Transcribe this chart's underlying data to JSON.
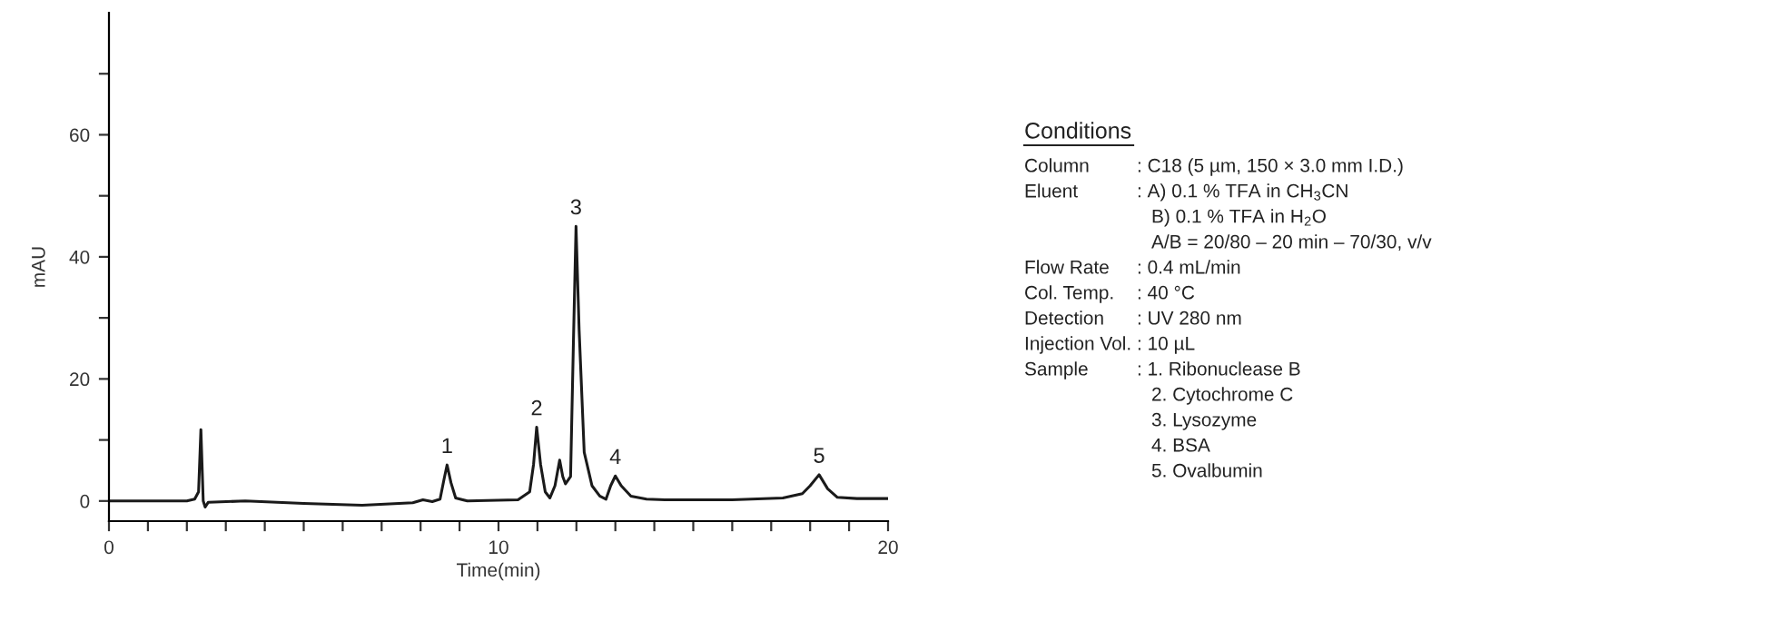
{
  "chart_data": {
    "type": "line",
    "xlabel": "Time(min)",
    "ylabel": "mAU",
    "xlim": [
      0,
      20
    ],
    "ylim": [
      -3.3,
      80
    ],
    "xticks": [
      0,
      {
        "value": 1,
        "label": null
      },
      {
        "value": 2,
        "label": null
      },
      {
        "value": 3,
        "label": null
      },
      {
        "value": 4,
        "label": null
      },
      {
        "value": 5,
        "label": null
      },
      {
        "value": 6,
        "label": null
      },
      {
        "value": 7,
        "label": null
      },
      {
        "value": 8,
        "label": null
      },
      {
        "value": 9,
        "label": null
      },
      10,
      {
        "value": 11,
        "label": null
      },
      {
        "value": 12,
        "label": null
      },
      {
        "value": 13,
        "label": null
      },
      {
        "value": 14,
        "label": null
      },
      {
        "value": 15,
        "label": null
      },
      {
        "value": 16,
        "label": null
      },
      {
        "value": 17,
        "label": null
      },
      {
        "value": 18,
        "label": null
      },
      {
        "value": 19,
        "label": null
      },
      20
    ],
    "yticks": [
      0,
      {
        "value": 10,
        "label": null
      },
      20,
      {
        "value": 30,
        "label": null
      },
      40,
      {
        "value": 50,
        "label": null
      },
      60,
      {
        "value": 70,
        "label": null
      }
    ],
    "grid": false,
    "legend": false,
    "series": [
      {
        "color": "#1a1a1a",
        "x": [
          0,
          2.0,
          2.2,
          2.3,
          2.36,
          2.42,
          2.47,
          2.55,
          3.5,
          5,
          6.5,
          7.8,
          8.06,
          8.3,
          8.5,
          8.6,
          8.68,
          8.78,
          8.9,
          9.2,
          10.5,
          10.8,
          10.9,
          10.98,
          11.08,
          11.2,
          11.32,
          11.45,
          11.57,
          11.65,
          11.72,
          11.85,
          11.92,
          11.99,
          12.07,
          12.2,
          12.4,
          12.6,
          12.76,
          12.88,
          13.0,
          13.15,
          13.4,
          13.8,
          14.27,
          16,
          17.3,
          17.8,
          18.0,
          18.23,
          18.45,
          18.7,
          19.2,
          20
        ],
        "values": [
          0,
          0,
          0.3,
          1.5,
          11.7,
          0,
          -1.0,
          -0.2,
          0,
          -0.4,
          -0.7,
          -0.3,
          0.2,
          -0.1,
          0.3,
          3.5,
          5.9,
          3,
          0.5,
          0,
          0.2,
          1.5,
          6,
          12.1,
          6,
          1.5,
          0.5,
          2.5,
          6.7,
          4,
          2.8,
          4,
          25,
          45.0,
          28,
          8,
          2.5,
          0.8,
          0.3,
          2.5,
          4.1,
          2.5,
          0.8,
          0.3,
          0.2,
          0.2,
          0.5,
          1.2,
          2.5,
          4.3,
          2,
          0.6,
          0.4,
          0.4
        ]
      }
    ],
    "annotations": [
      {
        "text": "1",
        "x": 8.68,
        "y": 5.9
      },
      {
        "text": "2",
        "x": 10.98,
        "y": 12.1
      },
      {
        "text": "3",
        "x": 11.99,
        "y": 45.0
      },
      {
        "text": "4",
        "x": 13.0,
        "y": 4.1
      },
      {
        "text": "5",
        "x": 18.23,
        "y": 4.3
      },
      "Conditions",
      "Column\t: C18 (5 µm, 150 × 3.0 mm I.D.)",
      "Eluent\t: A) 0.1 % TFA in CH$_{3}$CN",
      "\tB) 0.1 % TFA in H$_{2}$O",
      "\tA/B = 20/80 – 20 min – 70/30, v/v",
      "Flow Rate\t: 0.4 mL/min",
      "Col. Temp.\t: 40 °C",
      "Detection\t: UV 280 nm",
      "Injection Vol.\t: 10 µL",
      "Sample\t: 1. Ribonuclease B",
      "\t2. Cytochrome C",
      "\t3. Lysozyme",
      "\t4. BSA",
      "\t5. Ovalbumin"
    ]
  }
}
